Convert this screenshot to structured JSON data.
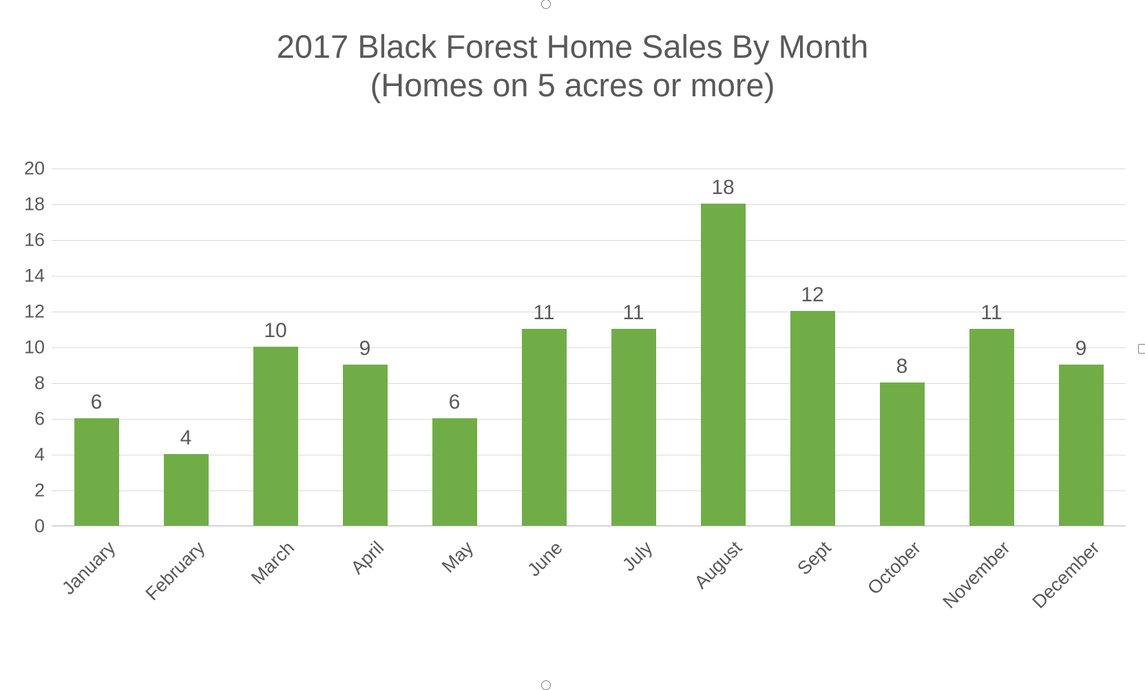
{
  "chart": {
    "type": "bar",
    "title_line1": "2017 Black Forest Home Sales By Month",
    "title_line2": "(Homes on 5 acres or more)",
    "title_fontsize": 47,
    "title_color": "#595959",
    "categories": [
      "January",
      "February",
      "March",
      "April",
      "May",
      "June",
      "July",
      "August",
      "Sept",
      "October",
      "November",
      "December"
    ],
    "values": [
      6,
      4,
      10,
      9,
      6,
      11,
      11,
      18,
      12,
      8,
      11,
      9
    ],
    "value_labels": [
      "6",
      "4",
      "10",
      "9",
      "6",
      "11",
      "11",
      "18",
      "12",
      "8",
      "11",
      "9"
    ],
    "bar_color": "#70ad47",
    "ylim": [
      0,
      20
    ],
    "ytick_step": 2,
    "yticks": [
      0,
      2,
      4,
      6,
      8,
      10,
      12,
      14,
      16,
      18,
      20
    ],
    "axis_label_fontsize": 27,
    "value_label_fontsize": 27,
    "data_label_fontsize": 30,
    "background_color": "#ffffff",
    "grid_color": "#d9d9d9",
    "axis_line_color": "#b3b3b3",
    "bar_width_ratio": 0.5,
    "x_label_rotation_deg": -45
  }
}
